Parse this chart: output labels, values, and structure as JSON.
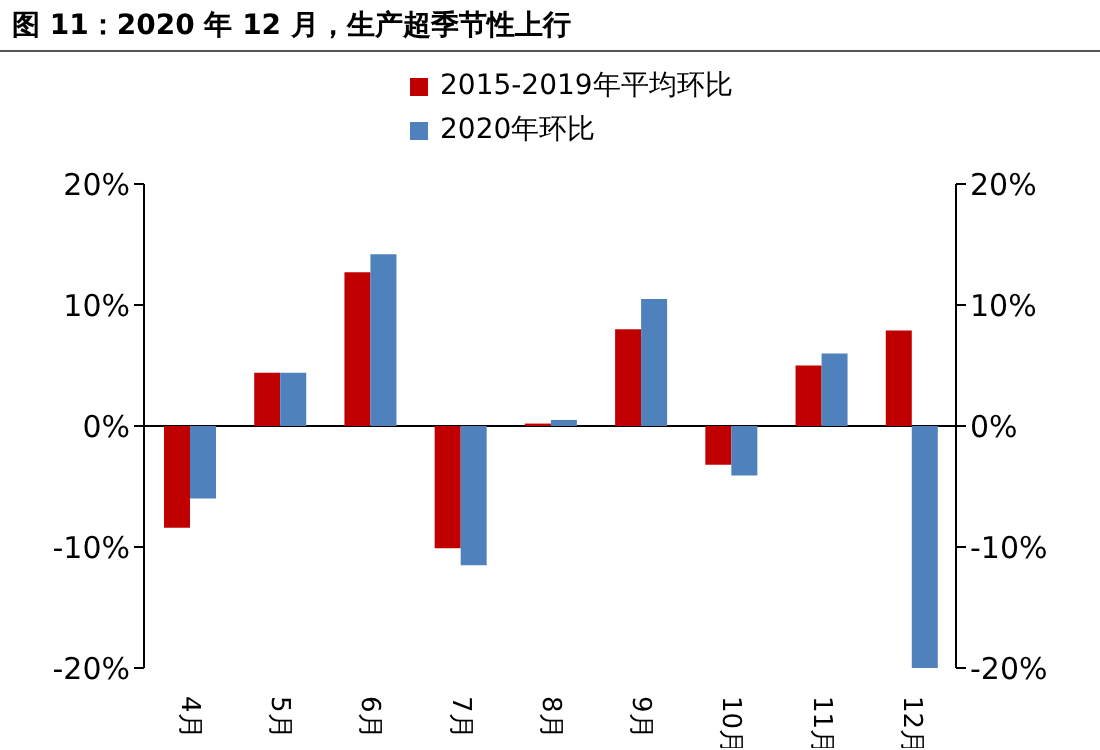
{
  "chart_data": {
    "type": "bar",
    "title": "图 11：2020 年 12 月，生产超季节性上行",
    "categories": [
      "4月",
      "5月",
      "6月",
      "7月",
      "8月",
      "9月",
      "10月",
      "11月",
      "12月"
    ],
    "series": [
      {
        "name": "2015-2019年平均环比",
        "color": "#c00000",
        "values": [
          -8.4,
          4.4,
          12.7,
          -10.1,
          0.2,
          8.0,
          -3.2,
          5.0,
          7.9
        ]
      },
      {
        "name": "2020年环比",
        "color": "#4f81bd",
        "values": [
          -6.0,
          4.4,
          14.2,
          -11.5,
          0.5,
          10.5,
          -4.1,
          6.0,
          -20.0
        ]
      }
    ],
    "ylim": [
      -20,
      20
    ],
    "yticks": [
      {
        "value": -20,
        "label": "-20%"
      },
      {
        "value": -10,
        "label": "-10%"
      },
      {
        "value": 0,
        "label": "0%"
      },
      {
        "value": 10,
        "label": "10%"
      },
      {
        "value": 20,
        "label": "20%"
      }
    ],
    "y2lim": [
      -20,
      20
    ],
    "y2ticks": [
      {
        "value": -20,
        "label": "-20%"
      },
      {
        "value": -10,
        "label": "-10%"
      },
      {
        "value": 0,
        "label": "0%"
      },
      {
        "value": 10,
        "label": "10%"
      },
      {
        "value": 20,
        "label": "20%"
      }
    ],
    "legend": "top"
  }
}
